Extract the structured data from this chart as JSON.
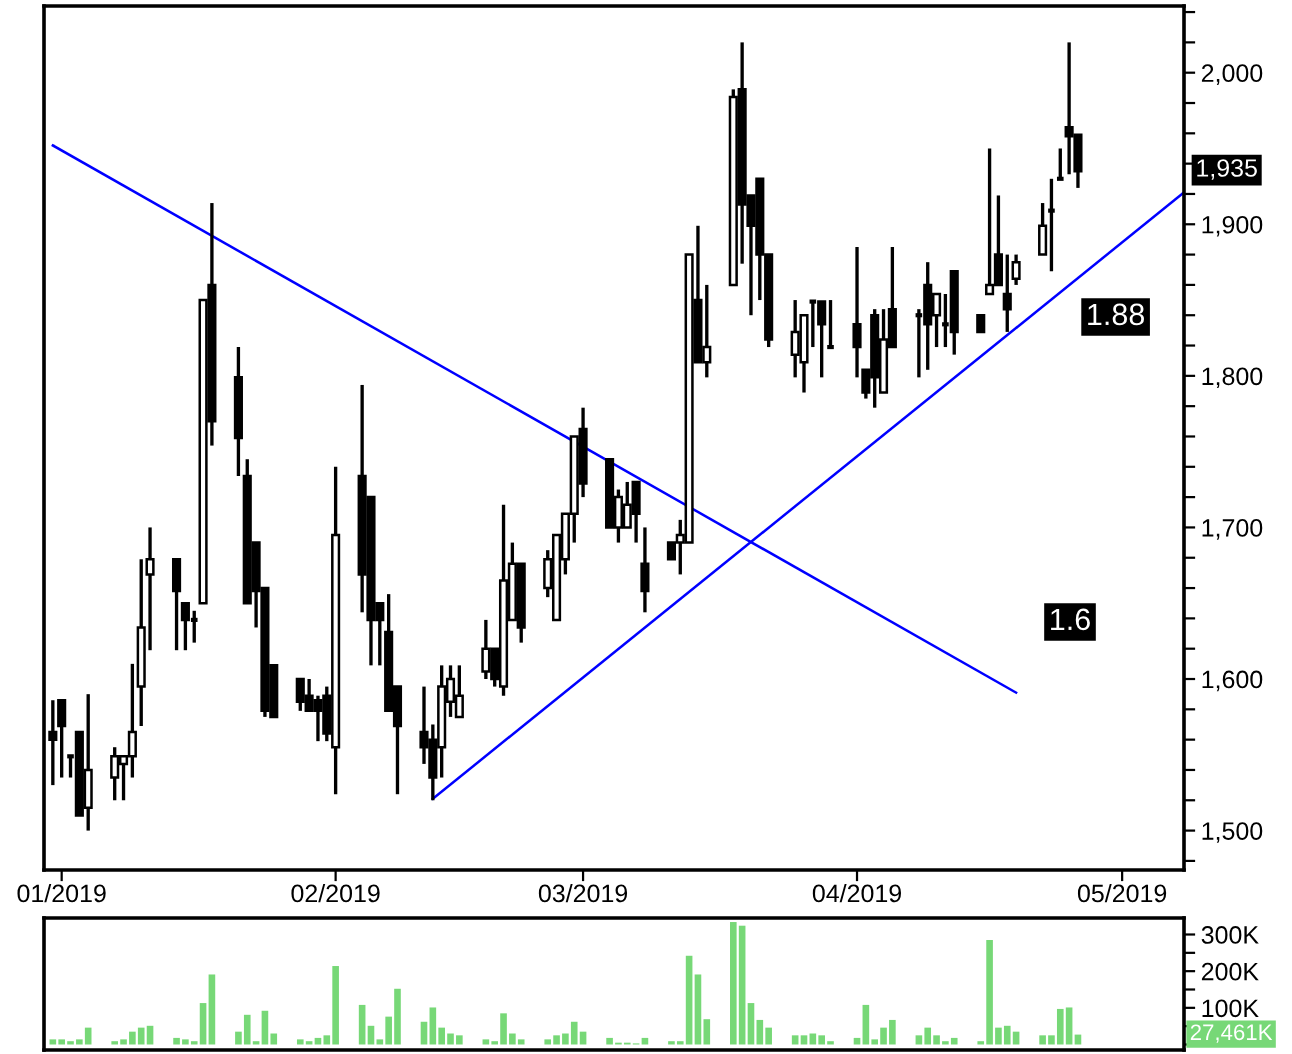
{
  "chart_data": [
    {
      "type": "candlestick",
      "x": [
        "2018-12-31",
        "2019-01-01",
        "2019-01-02",
        "2019-01-03",
        "2019-01-04",
        "2019-01-07",
        "2019-01-08",
        "2019-01-09",
        "2019-01-10",
        "2019-01-11",
        "2019-01-14",
        "2019-01-15",
        "2019-01-16",
        "2019-01-17",
        "2019-01-18",
        "2019-01-21",
        "2019-01-22",
        "2019-01-23",
        "2019-01-24",
        "2019-01-25",
        "2019-01-28",
        "2019-01-29",
        "2019-01-30",
        "2019-01-31",
        "2019-02-01",
        "2019-02-04",
        "2019-02-05",
        "2019-02-06",
        "2019-02-07",
        "2019-02-08",
        "2019-02-11",
        "2019-02-12",
        "2019-02-13",
        "2019-02-14",
        "2019-02-15",
        "2019-02-18",
        "2019-02-19",
        "2019-02-20",
        "2019-02-21",
        "2019-02-22",
        "2019-02-25",
        "2019-02-26",
        "2019-02-27",
        "2019-02-28",
        "2019-03-01",
        "2019-03-04",
        "2019-03-05",
        "2019-03-06",
        "2019-03-07",
        "2019-03-08",
        "2019-03-11",
        "2019-03-12",
        "2019-03-13",
        "2019-03-14",
        "2019-03-15",
        "2019-03-18",
        "2019-03-19",
        "2019-03-20",
        "2019-03-21",
        "2019-03-22",
        "2019-03-25",
        "2019-03-26",
        "2019-03-27",
        "2019-03-28",
        "2019-03-29",
        "2019-04-01",
        "2019-04-02",
        "2019-04-03",
        "2019-04-04",
        "2019-04-05",
        "2019-04-08",
        "2019-04-09",
        "2019-04-10",
        "2019-04-11",
        "2019-04-12",
        "2019-04-15",
        "2019-04-16",
        "2019-04-17",
        "2019-04-18",
        "2019-04-19",
        "2019-04-22",
        "2019-04-23",
        "2019-04-24",
        "2019-04-25",
        "2019-04-26"
      ],
      "ohlc": [
        [
          1565,
          1586,
          1530,
          1560
        ],
        [
          1586,
          1586,
          1535,
          1569
        ],
        [
          1549,
          1549,
          1535,
          1549
        ],
        [
          1565,
          1565,
          1510,
          1510
        ],
        [
          1515,
          1590,
          1500,
          1540
        ],
        [
          1535,
          1555,
          1520,
          1549
        ],
        [
          1544,
          1549,
          1520,
          1549
        ],
        [
          1549,
          1610,
          1535,
          1565
        ],
        [
          1595,
          1679,
          1569,
          1634
        ],
        [
          1669,
          1700,
          1619,
          1679
        ],
        [
          1679,
          1679,
          1619,
          1658
        ],
        [
          1650,
          1650,
          1619,
          1639
        ],
        [
          1639,
          1645,
          1624,
          1639
        ],
        [
          1650,
          1850,
          1650,
          1850
        ],
        [
          1860,
          1914,
          1754,
          1770
        ],
        [
          1799,
          1819,
          1734,
          1759
        ],
        [
          1734,
          1745,
          1650,
          1650
        ],
        [
          1690,
          1690,
          1634,
          1658
        ],
        [
          1660,
          1660,
          1575,
          1579
        ],
        [
          1609,
          1609,
          1575,
          1575
        ],
        [
          1600,
          1600,
          1579,
          1585
        ],
        [
          1589,
          1600,
          1579,
          1579
        ],
        [
          1586,
          1589,
          1559,
          1579
        ],
        [
          1589,
          1595,
          1559,
          1564
        ],
        [
          1555,
          1740,
          1524,
          1695
        ],
        [
          1734,
          1794,
          1644,
          1669
        ],
        [
          1720,
          1720,
          1609,
          1639
        ],
        [
          1650,
          1650,
          1609,
          1639
        ],
        [
          1631,
          1656,
          1579,
          1579
        ],
        [
          1595,
          1595,
          1524,
          1569
        ],
        [
          1565,
          1595,
          1544,
          1555
        ],
        [
          1560,
          1570,
          1520,
          1535
        ],
        [
          1555,
          1609,
          1535,
          1595
        ],
        [
          1585,
          1609,
          1575,
          1600
        ],
        [
          1575,
          1609,
          1575,
          1589
        ],
        [
          1605,
          1639,
          1600,
          1620
        ],
        [
          1620,
          1620,
          1595,
          1600
        ],
        [
          1595,
          1715,
          1589,
          1665
        ],
        [
          1639,
          1690,
          1639,
          1676
        ],
        [
          1676,
          1676,
          1624,
          1634
        ],
        [
          1660,
          1685,
          1654,
          1679
        ],
        [
          1639,
          1695,
          1639,
          1695
        ],
        [
          1679,
          1709,
          1669,
          1709
        ],
        [
          1709,
          1760,
          1690,
          1760
        ],
        [
          1765,
          1779,
          1720,
          1729
        ],
        [
          1745,
          1745,
          1700,
          1700
        ],
        [
          1700,
          1725,
          1690,
          1720
        ],
        [
          1700,
          1730,
          1700,
          1715
        ],
        [
          1730,
          1730,
          1690,
          1709
        ],
        [
          1676,
          1700,
          1644,
          1658
        ],
        [
          1690,
          1690,
          1679,
          1679
        ],
        [
          1690,
          1705,
          1669,
          1695
        ],
        [
          1690,
          1880,
          1690,
          1880
        ],
        [
          1850,
          1899,
          1809,
          1809
        ],
        [
          1809,
          1860,
          1799,
          1819
        ],
        [
          1860,
          1989,
          1860,
          1984
        ],
        [
          1989,
          2020,
          1874,
          1913
        ],
        [
          1919,
          1919,
          1840,
          1899
        ],
        [
          1930,
          1930,
          1850,
          1880
        ],
        [
          1880,
          1880,
          1819,
          1824
        ],
        [
          1814,
          1850,
          1799,
          1829
        ],
        [
          1809,
          1840,
          1789,
          1840
        ],
        [
          1849,
          1849,
          1819,
          1849
        ],
        [
          1849,
          1849,
          1799,
          1834
        ],
        [
          1819,
          1850,
          1819,
          1819
        ],
        [
          1834,
          1885,
          1799,
          1819
        ],
        [
          1804,
          1804,
          1785,
          1789
        ],
        [
          1840,
          1844,
          1779,
          1799
        ],
        [
          1789,
          1844,
          1789,
          1824
        ],
        [
          1844,
          1885,
          1819,
          1819
        ],
        [
          1840,
          1844,
          1799,
          1840
        ],
        [
          1860,
          1875,
          1804,
          1834
        ],
        [
          1840,
          1854,
          1819,
          1854
        ],
        [
          1834,
          1854,
          1819,
          1834
        ],
        [
          1869,
          1869,
          1814,
          1829
        ],
        [
          1840,
          1840,
          1829,
          1829
        ],
        [
          1854,
          1950,
          1854,
          1860
        ],
        [
          1880,
          1919,
          1860,
          1860
        ],
        [
          1854,
          1880,
          1829,
          1844
        ],
        [
          1864,
          1880,
          1860,
          1875
        ],
        [
          1880,
          1914,
          1880,
          1899
        ],
        [
          1909,
          1930,
          1869,
          1909
        ],
        [
          1930,
          1950,
          1930,
          1930
        ],
        [
          1964,
          2020,
          1933,
          1958
        ],
        [
          1959,
          1959,
          1924,
          1935
        ]
      ],
      "series": [
        {
          "type": "line",
          "color": "#0000ff",
          "x": [
            "2018-12-31",
            "2019-04-19"
          ],
          "values": [
            1952,
            1591
          ]
        },
        {
          "type": "line",
          "color": "#0000ff",
          "x": [
            "2019-02-12",
            "2019-05-08"
          ],
          "values": [
            1521,
            1921
          ]
        }
      ],
      "xlim": [
        "2018-12-30",
        "2019-05-08"
      ],
      "xticks": [
        {
          "value": "2019-01-01",
          "label": "01/2019"
        },
        {
          "value": "2019-02-01",
          "label": "02/2019"
        },
        {
          "value": "2019-03-01",
          "label": "03/2019"
        },
        {
          "value": "2019-04-01",
          "label": "04/2019"
        },
        {
          "value": "2019-05-01",
          "label": "05/2019"
        }
      ],
      "ylim": [
        1474,
        2044
      ],
      "yticks": [
        {
          "value": 1480,
          "label": null
        },
        {
          "value": 1500,
          "label": "1,500"
        },
        {
          "value": 1520,
          "label": null
        },
        {
          "value": 1540,
          "label": null
        },
        {
          "value": 1560,
          "label": null
        },
        {
          "value": 1580,
          "label": null
        },
        {
          "value": 1600,
          "label": "1,600"
        },
        {
          "value": 1620,
          "label": null
        },
        {
          "value": 1640,
          "label": null
        },
        {
          "value": 1660,
          "label": null
        },
        {
          "value": 1680,
          "label": null
        },
        {
          "value": 1700,
          "label": "1,700"
        },
        {
          "value": 1720,
          "label": null
        },
        {
          "value": 1740,
          "label": null
        },
        {
          "value": 1760,
          "label": null
        },
        {
          "value": 1780,
          "label": null
        },
        {
          "value": 1800,
          "label": "1,800"
        },
        {
          "value": 1820,
          "label": null
        },
        {
          "value": 1840,
          "label": null
        },
        {
          "value": 1860,
          "label": null
        },
        {
          "value": 1880,
          "label": null
        },
        {
          "value": 1900,
          "label": "1,900"
        },
        {
          "value": 1920,
          "label": null
        },
        {
          "value": 1940,
          "label": null
        },
        {
          "value": 1960,
          "label": null
        },
        {
          "value": 1980,
          "label": null
        },
        {
          "value": 2000,
          "label": "2,000"
        },
        {
          "value": 2020,
          "label": null
        },
        {
          "value": 2040,
          "label": null
        }
      ],
      "annotations": [
        "1,935",
        "1.88",
        "1.6"
      ],
      "grid": false,
      "legend": false
    },
    {
      "type": "bar",
      "x": [
        "2018-12-31",
        "2019-01-01",
        "2019-01-02",
        "2019-01-03",
        "2019-01-04",
        "2019-01-07",
        "2019-01-08",
        "2019-01-09",
        "2019-01-10",
        "2019-01-11",
        "2019-01-14",
        "2019-01-15",
        "2019-01-16",
        "2019-01-17",
        "2019-01-18",
        "2019-01-21",
        "2019-01-22",
        "2019-01-23",
        "2019-01-24",
        "2019-01-25",
        "2019-01-28",
        "2019-01-29",
        "2019-01-30",
        "2019-01-31",
        "2019-02-01",
        "2019-02-04",
        "2019-02-05",
        "2019-02-06",
        "2019-02-07",
        "2019-02-08",
        "2019-02-11",
        "2019-02-12",
        "2019-02-13",
        "2019-02-14",
        "2019-02-15",
        "2019-02-18",
        "2019-02-19",
        "2019-02-20",
        "2019-02-21",
        "2019-02-22",
        "2019-02-25",
        "2019-02-26",
        "2019-02-27",
        "2019-02-28",
        "2019-03-01",
        "2019-03-04",
        "2019-03-05",
        "2019-03-06",
        "2019-03-07",
        "2019-03-08",
        "2019-03-11",
        "2019-03-12",
        "2019-03-13",
        "2019-03-14",
        "2019-03-15",
        "2019-03-18",
        "2019-03-19",
        "2019-03-20",
        "2019-03-21",
        "2019-03-22",
        "2019-03-25",
        "2019-03-26",
        "2019-03-27",
        "2019-03-28",
        "2019-03-29",
        "2019-04-01",
        "2019-04-02",
        "2019-04-03",
        "2019-04-04",
        "2019-04-05",
        "2019-04-08",
        "2019-04-09",
        "2019-04-10",
        "2019-04-11",
        "2019-04-12",
        "2019-04-15",
        "2019-04-16",
        "2019-04-17",
        "2019-04-18",
        "2019-04-19",
        "2019-04-22",
        "2019-04-23",
        "2019-04-24",
        "2019-04-25",
        "2019-04-26"
      ],
      "values": [
        14000,
        14000,
        9000,
        14000,
        46000,
        9000,
        14000,
        35000,
        46000,
        51000,
        18000,
        14000,
        9000,
        113000,
        191000,
        35000,
        81000,
        9000,
        92000,
        30000,
        14000,
        9000,
        18000,
        25000,
        214000,
        108000,
        51000,
        14000,
        76000,
        152000,
        62000,
        101000,
        46000,
        30000,
        25000,
        14000,
        9000,
        85000,
        30000,
        14000,
        14000,
        25000,
        30000,
        62000,
        35000,
        18000,
        5000,
        5000,
        3000,
        18000,
        9000,
        9000,
        242000,
        191000,
        69000,
        334000,
        324000,
        113000,
        67000,
        46000,
        25000,
        25000,
        30000,
        25000,
        9000,
        18000,
        108000,
        14000,
        46000,
        67000,
        25000,
        46000,
        25000,
        9000,
        18000,
        9000,
        285000,
        46000,
        51000,
        35000,
        25000,
        25000,
        97000,
        101000,
        27000
      ],
      "color": "#77d877",
      "xlim": [
        "2018-12-30",
        "2019-05-08"
      ],
      "ylim": [
        -15000,
        345000
      ],
      "yticks": [
        {
          "value": 0,
          "label": null
        },
        {
          "value": 50000,
          "label": null
        },
        {
          "value": 100000,
          "label": "100K"
        },
        {
          "value": 150000,
          "label": null
        },
        {
          "value": 200000,
          "label": "200K"
        },
        {
          "value": 250000,
          "label": null
        },
        {
          "value": 300000,
          "label": "300K"
        }
      ],
      "annotations": [
        "27,461K"
      ],
      "tick_labels": "y",
      "grid": false,
      "legend": false
    }
  ]
}
